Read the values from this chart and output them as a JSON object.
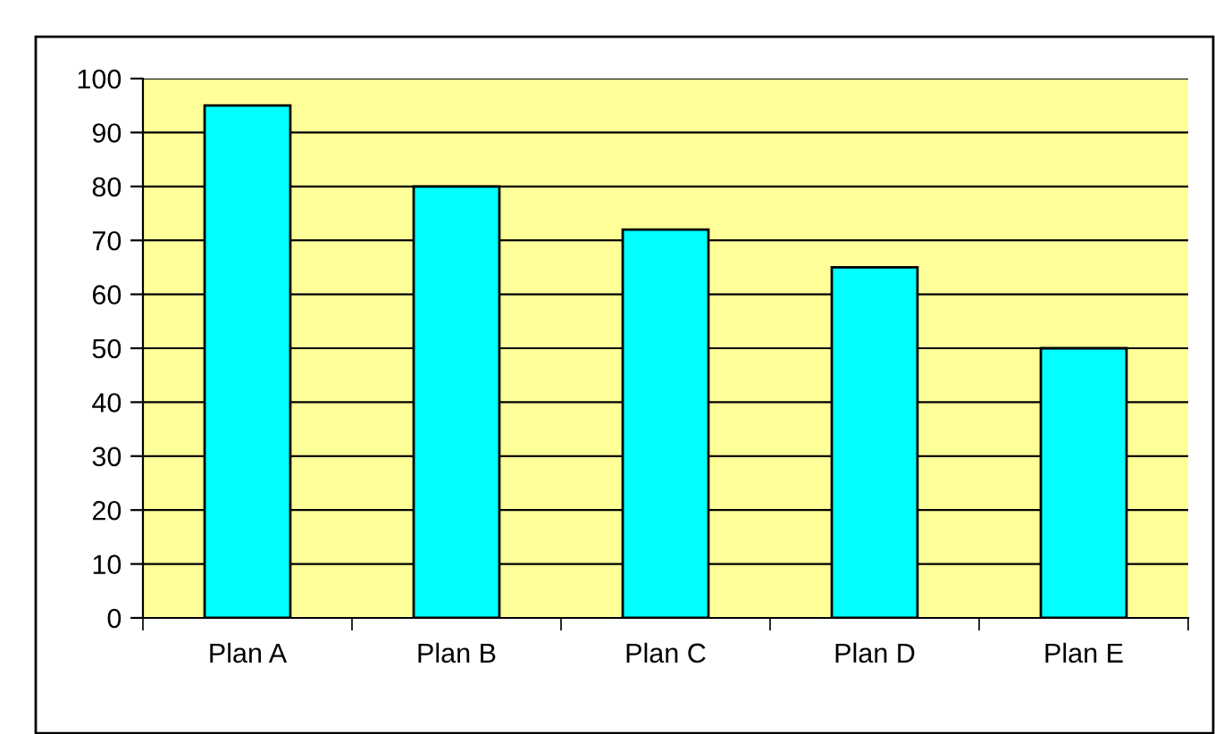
{
  "chart_data": {
    "type": "bar",
    "categories": [
      "Plan A",
      "Plan B",
      "Plan C",
      "Plan D",
      "Plan E"
    ],
    "values": [
      95,
      80,
      72,
      65,
      50
    ],
    "color": "#00ffff",
    "ylim": [
      0,
      100
    ],
    "yticks": [
      0,
      10,
      20,
      30,
      40,
      50,
      60,
      70,
      80,
      90,
      100
    ],
    "grid": "y",
    "legend": false
  }
}
